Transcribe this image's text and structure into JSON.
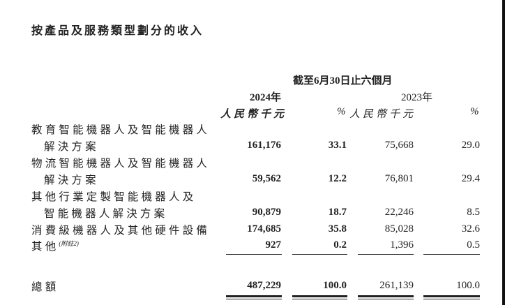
{
  "title": "按產品及服務類型劃分的收入",
  "header": {
    "period": "截至6月30日止六個月",
    "years": [
      "2024年",
      "2023年"
    ],
    "units": [
      "人民幣千元",
      "%",
      "人民幣千元",
      "%"
    ]
  },
  "rows": [
    {
      "label": [
        "教育智能機器人及智能機器人",
        "解決方案"
      ],
      "values": [
        "161,176",
        "33.1",
        "75,668",
        "29.0"
      ]
    },
    {
      "label": [
        "物流智能機器人及智能機器人",
        "解決方案"
      ],
      "values": [
        "59,562",
        "12.2",
        "76,801",
        "29.4"
      ]
    },
    {
      "label": [
        "其他行業定製智能機器人及",
        "智能機器人解決方案"
      ],
      "values": [
        "90,879",
        "18.7",
        "22,246",
        "8.5"
      ]
    },
    {
      "label": [
        "消費級機器人及其他硬件設備"
      ],
      "values": [
        "174,685",
        "35.8",
        "85,028",
        "32.6"
      ]
    },
    {
      "label": [
        "其他"
      ],
      "note": "(附註2)",
      "values": [
        "927",
        "0.2",
        "1,396",
        "0.5"
      ]
    }
  ],
  "total": {
    "label": "總額",
    "values": [
      "487,229",
      "100.0",
      "261,139",
      "100.0"
    ]
  }
}
